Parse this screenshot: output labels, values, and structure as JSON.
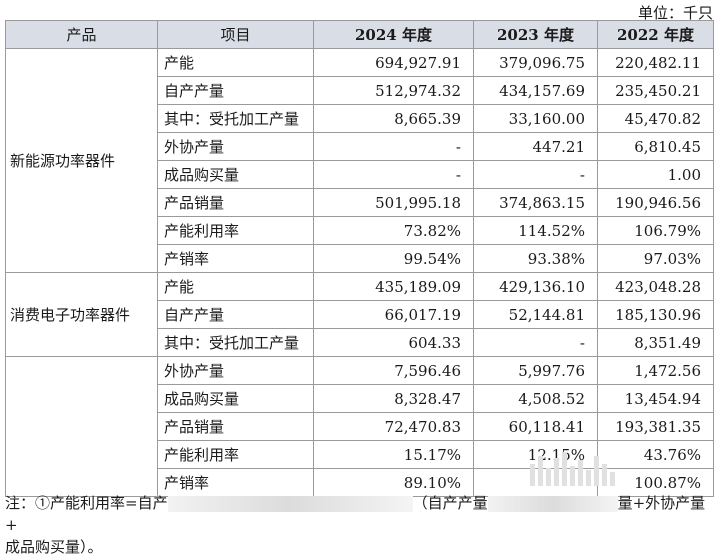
{
  "unit_label": "单位：千只",
  "table": {
    "headers": [
      "产品",
      "项目",
      "2024 年度",
      "2023 年度",
      "2022 年度"
    ],
    "groups": [
      {
        "name": "新能源功率器件",
        "rows": [
          {
            "item": "产能",
            "v2024": "694,927.91",
            "v2023": "379,096.75",
            "v2022": "220,482.11"
          },
          {
            "item": "自产产量",
            "v2024": "512,974.32",
            "v2023": "434,157.69",
            "v2022": "235,450.21"
          },
          {
            "item": "其中：受托加工产量",
            "v2024": "8,665.39",
            "v2023": "33,160.00",
            "v2022": "45,470.82"
          },
          {
            "item": "外协产量",
            "v2024": "-",
            "v2023": "447.21",
            "v2022": "6,810.45"
          },
          {
            "item": "成品购买量",
            "v2024": "-",
            "v2023": "-",
            "v2022": "1.00"
          },
          {
            "item": "产品销量",
            "v2024": "501,995.18",
            "v2023": "374,863.15",
            "v2022": "190,946.56"
          },
          {
            "item": "产能利用率",
            "v2024": "73.82%",
            "v2023": "114.52%",
            "v2022": "106.79%"
          },
          {
            "item": "产销率",
            "v2024": "99.54%",
            "v2023": "93.38%",
            "v2022": "97.03%"
          }
        ]
      },
      {
        "name": "消费电子功率器件",
        "rows": [
          {
            "item": "产能",
            "v2024": "435,189.09",
            "v2023": "429,136.10",
            "v2022": "423,048.28"
          },
          {
            "item": "自产产量",
            "v2024": "66,017.19",
            "v2023": "52,144.81",
            "v2022": "185,130.96"
          },
          {
            "item": "其中：受托加工产量",
            "v2024": "604.33",
            "v2023": "-",
            "v2022": "8,351.49"
          }
        ]
      },
      {
        "name": "",
        "rows": [
          {
            "item": "外协产量",
            "v2024": "7,596.46",
            "v2023": "5,997.76",
            "v2022": "1,472.56"
          },
          {
            "item": "成品购买量",
            "v2024": "8,328.47",
            "v2023": "4,508.52",
            "v2022": "13,454.94"
          },
          {
            "item": "产品销量",
            "v2024": "72,470.83",
            "v2023": "60,118.41",
            "v2022": "193,381.35"
          },
          {
            "item": "产能利用率",
            "v2024": "15.17%",
            "v2023": "12.15%",
            "v2022": "43.76%"
          },
          {
            "item": "产销率",
            "v2024": "89.10%",
            "v2023": "",
            "v2022": "100.87%"
          }
        ]
      }
    ]
  },
  "note": {
    "part1": "注：①产能利用率=自产",
    "part2": "（自产产量",
    "part3": "量+外协产量+",
    "line2": "成品购买量）。"
  }
}
